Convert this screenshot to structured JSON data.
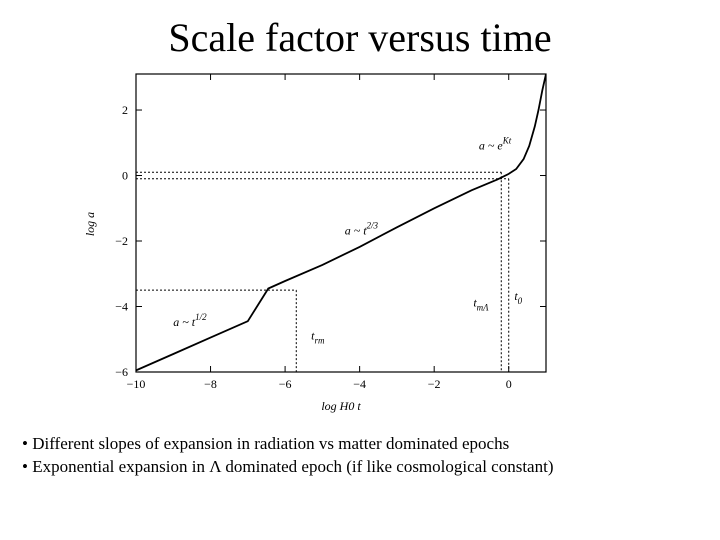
{
  "slide": {
    "title": "Scale factor versus time",
    "bullets": [
      "• Different slopes of expansion in radiation vs matter dominated epochs",
      "• Exponential expansion in Λ dominated epoch (if like cosmological constant)"
    ]
  },
  "chart_data": {
    "type": "line",
    "title": "",
    "xlabel": "log H0 t",
    "ylabel": "log a",
    "xlim": [
      -10,
      1
    ],
    "ylim": [
      -6,
      3.1
    ],
    "x_ticks": [
      -10,
      -8,
      -6,
      -4,
      -2,
      0
    ],
    "y_ticks": [
      -6,
      -4,
      -2,
      0,
      2
    ],
    "grid": false,
    "series": [
      {
        "name": "",
        "color": "#000000",
        "x": [
          -10,
          -9,
          -8,
          -7,
          -6.45,
          -6,
          -5,
          -4,
          -3,
          -2,
          -1,
          -0.3,
          0,
          0.2,
          0.4,
          0.55,
          0.7,
          0.8,
          0.9,
          1.0
        ],
        "y": [
          -5.95,
          -5.45,
          -4.95,
          -4.45,
          -3.45,
          -3.22,
          -2.73,
          -2.18,
          -1.58,
          -1.0,
          -0.45,
          -0.12,
          0.05,
          0.2,
          0.5,
          0.9,
          1.5,
          2.0,
          2.6,
          3.1
        ]
      }
    ],
    "annotations": [
      {
        "id": "radiation",
        "text": "a ~ t^1/2",
        "x": -9.0,
        "y": -4.6
      },
      {
        "id": "matter",
        "text": "a ~ t^2/3",
        "x": -4.4,
        "y": -1.8
      },
      {
        "id": "lambda",
        "text": "a ~ e^Kt",
        "x": -0.8,
        "y": 0.8
      },
      {
        "id": "t-rm",
        "text": "t_rm",
        "x": -5.3,
        "y": -5.0
      },
      {
        "id": "t-m-lambda",
        "text": "t_mΛ",
        "x": -0.95,
        "y": -4.0
      },
      {
        "id": "t-0",
        "text": "t_0",
        "x": 0.15,
        "y": -3.8
      }
    ],
    "guides": [
      {
        "id": "t-rm-horizontal",
        "x": [
          -10,
          -5.7
        ],
        "y": [
          -3.5,
          -3.5
        ]
      },
      {
        "id": "t-rm-vertical",
        "x": [
          -5.7,
          -5.7
        ],
        "y": [
          -3.5,
          -6
        ]
      },
      {
        "id": "t-m-lambda-horizontal",
        "x": [
          -10,
          -0.2
        ],
        "y": [
          0.1,
          0.1
        ]
      },
      {
        "id": "t-m-lambda-vertical",
        "x": [
          -0.2,
          -0.2
        ],
        "y": [
          0.1,
          -6
        ]
      },
      {
        "id": "t-0-horizontal",
        "x": [
          -10,
          0
        ],
        "y": [
          -0.1,
          -0.1
        ]
      },
      {
        "id": "t-0-vertical",
        "x": [
          0,
          0
        ],
        "y": [
          -0.1,
          -6
        ]
      }
    ]
  }
}
